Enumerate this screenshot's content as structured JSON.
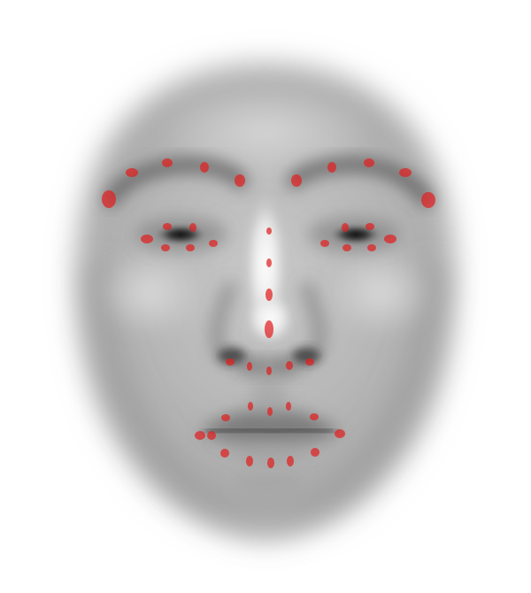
{
  "image": {
    "background_color": "#ffffff",
    "subject": "averaged-face-grayscale",
    "landmark_color": "#e02020",
    "landmark_opacity": 0.72,
    "landmark_count": 51,
    "landmark_groups": [
      "right-eyebrow",
      "left-eyebrow",
      "nose-bridge",
      "nose-base",
      "right-eye",
      "left-eye",
      "outer-lip",
      "inner-lip"
    ]
  }
}
